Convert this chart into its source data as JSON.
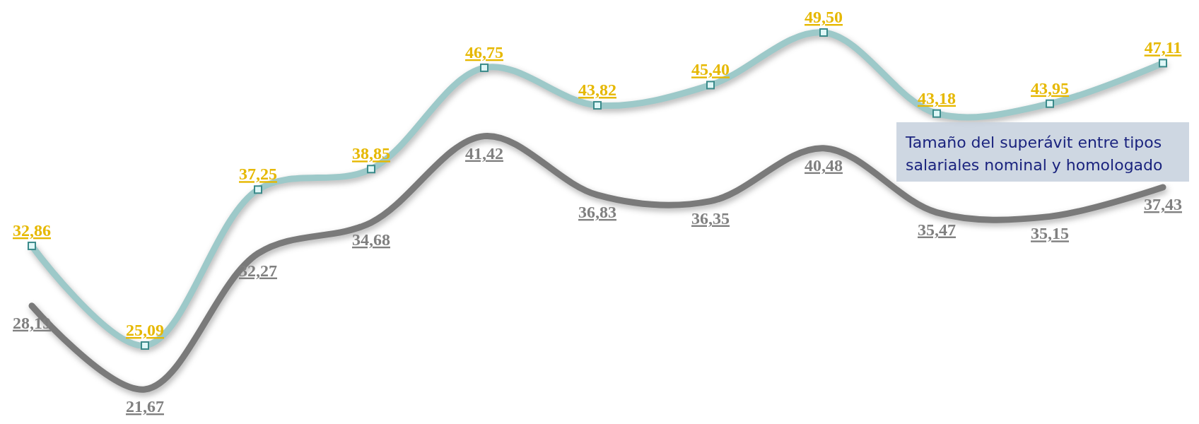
{
  "chart_data": {
    "type": "line",
    "categories": [
      null,
      null,
      null,
      null,
      null,
      null,
      null,
      null,
      null,
      null,
      null
    ],
    "series": [
      {
        "color": "#9dc9c9",
        "marker": "square",
        "values": [
          32.86,
          25.09,
          37.25,
          38.85,
          46.75,
          43.82,
          45.4,
          49.5,
          43.18,
          43.95,
          47.11
        ],
        "value_labels": [
          "32,86",
          "25,09",
          "37,25",
          "38,85",
          "46,75",
          "43,82",
          "45,40",
          "49,50",
          "43,18",
          "43,95",
          "47,11"
        ]
      },
      {
        "color": "#7a7a7a",
        "marker": "none",
        "values": [
          28.19,
          21.67,
          32.27,
          34.68,
          41.42,
          36.83,
          36.35,
          40.48,
          35.47,
          35.15,
          37.43
        ],
        "value_labels": [
          "28,19",
          "21,67",
          "32,27",
          "34,68",
          "41,42",
          "36,83",
          "36,35",
          "40,48",
          "35,47",
          "35,15",
          "37,43"
        ]
      }
    ],
    "annotations": [
      "Tamaño del superávit entre tipos salariales nominal y homologado"
    ]
  }
}
